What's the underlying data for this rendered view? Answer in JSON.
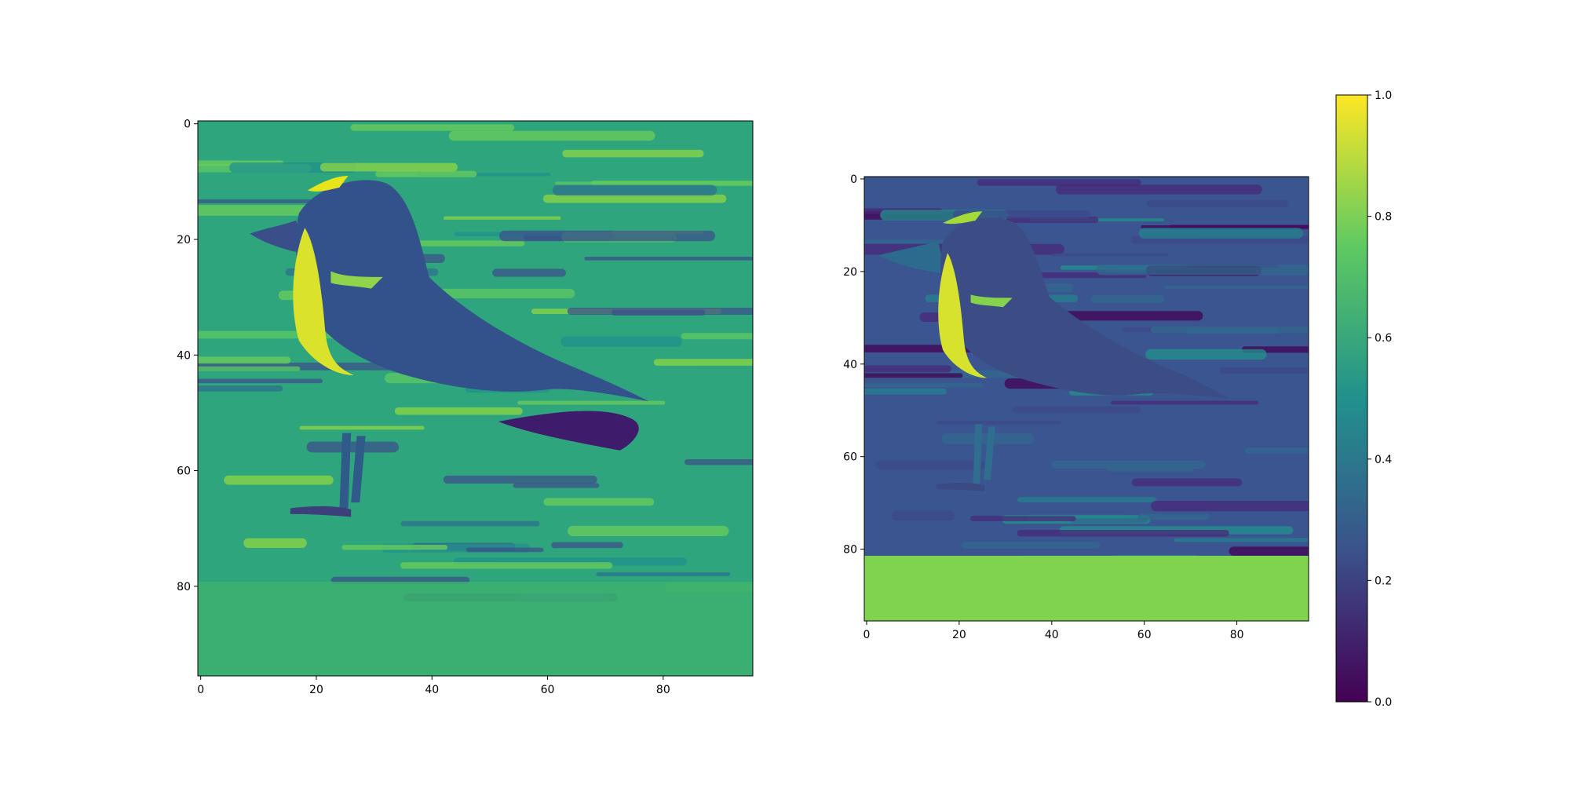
{
  "figure": {
    "background": "#ffffff"
  },
  "chart_data": [
    {
      "type": "heatmap",
      "title": "",
      "xlabel": "",
      "ylabel": "",
      "xlim": [
        -0.5,
        95.5
      ],
      "ylim": [
        95.5,
        -0.5
      ],
      "xticks": [
        0,
        20,
        40,
        60,
        80
      ],
      "yticks": [
        0,
        20,
        40,
        60,
        80
      ],
      "xtick_labels": [
        "0",
        "20",
        "40",
        "60",
        "80"
      ],
      "ytick_labels": [
        "0",
        "20",
        "40",
        "60",
        "80"
      ],
      "colormap": "viridis",
      "clim": [
        0,
        1
      ],
      "grid": false
    },
    {
      "type": "heatmap",
      "title": "",
      "xlabel": "",
      "ylabel": "",
      "xlim": [
        -0.5,
        95.5
      ],
      "ylim": [
        95.5,
        -0.5
      ],
      "xticks": [
        0,
        20,
        40,
        60,
        80
      ],
      "yticks": [
        0,
        20,
        40,
        60,
        80
      ],
      "xtick_labels": [
        "0",
        "20",
        "40",
        "60",
        "80"
      ],
      "ytick_labels": [
        "0",
        "20",
        "40",
        "60",
        "80"
      ],
      "colormap": "viridis",
      "clim": [
        0,
        1
      ],
      "grid": false
    }
  ],
  "colorbar": {
    "colormap": "viridis",
    "range": [
      0,
      1
    ],
    "ticks": [
      0,
      0.2,
      0.4,
      0.6,
      0.8,
      1.0
    ],
    "tick_labels": [
      "0.0",
      "0.2",
      "0.4",
      "0.6",
      "0.8",
      "1.0"
    ],
    "colors": [
      "#440154",
      "#3b528b",
      "#21918c",
      "#5ec962",
      "#fde725"
    ]
  }
}
